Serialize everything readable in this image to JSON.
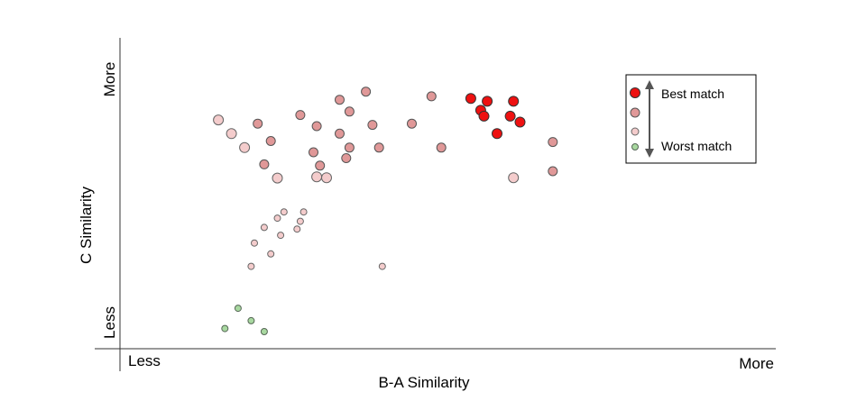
{
  "chart_data": {
    "type": "scatter",
    "title": "",
    "xlabel": "B-A Similarity",
    "ylabel": "C Similarity",
    "x_tick_labels": {
      "low": "Less",
      "high": "More"
    },
    "y_tick_labels": {
      "low": "Less",
      "high": "More"
    },
    "xlim": [
      0,
      100
    ],
    "ylim": [
      0,
      100
    ],
    "grid": false,
    "legend": {
      "position": "top-right",
      "top_label": "Best match",
      "bottom_label": "Worst match",
      "arrow": "double-headed vertical arrow between best and worst"
    },
    "tiers": [
      {
        "id": "best",
        "fill": "#ee1111",
        "stroke": "#333333"
      },
      {
        "id": "good",
        "fill": "#e09898",
        "stroke": "#555555"
      },
      {
        "id": "fair",
        "fill": "#f4cccc",
        "stroke": "#666666"
      },
      {
        "id": "worst",
        "fill": "#a8d8a0",
        "stroke": "#556655"
      }
    ],
    "series": [
      {
        "tier": "best",
        "points": [
          [
            53.5,
            80.5
          ],
          [
            55.0,
            76.7
          ],
          [
            56.0,
            79.6
          ],
          [
            55.5,
            74.8
          ],
          [
            60.0,
            79.6
          ],
          [
            57.5,
            69.2
          ],
          [
            59.5,
            74.8
          ],
          [
            61.0,
            72.9
          ]
        ]
      },
      {
        "tier": "good",
        "points": [
          [
            21.0,
            72.4
          ],
          [
            23.0,
            66.8
          ],
          [
            22.0,
            59.3
          ],
          [
            27.5,
            75.2
          ],
          [
            29.5,
            63.2
          ],
          [
            30.5,
            58.9
          ],
          [
            30.0,
            71.6
          ],
          [
            33.5,
            80.1
          ],
          [
            33.5,
            69.2
          ],
          [
            35.0,
            76.3
          ],
          [
            35.0,
            64.7
          ],
          [
            34.5,
            61.3
          ],
          [
            37.5,
            82.7
          ],
          [
            38.5,
            72.0
          ],
          [
            39.5,
            64.7
          ],
          [
            44.5,
            72.4
          ],
          [
            47.5,
            81.2
          ],
          [
            49.0,
            64.7
          ],
          [
            66.0,
            66.5
          ],
          [
            66.0,
            57.1
          ]
        ]
      },
      {
        "tier": "fair",
        "points": [
          [
            15.0,
            73.6
          ],
          [
            17.0,
            69.2
          ],
          [
            19.0,
            64.7
          ],
          [
            24.0,
            54.9
          ],
          [
            30.0,
            55.3
          ],
          [
            31.5,
            55.0
          ],
          [
            60.0,
            55.0
          ],
          [
            25.0,
            44.0
          ],
          [
            24.0,
            42.0
          ],
          [
            28.0,
            44.0
          ],
          [
            27.5,
            41.0
          ],
          [
            22.0,
            39.0
          ],
          [
            24.5,
            36.5
          ],
          [
            27.0,
            38.5
          ],
          [
            20.5,
            34.0
          ],
          [
            23.0,
            30.5
          ],
          [
            20.0,
            26.5
          ],
          [
            40.0,
            26.5
          ]
        ]
      },
      {
        "tier": "worst",
        "points": [
          [
            18.0,
            13.0
          ],
          [
            16.0,
            6.5
          ],
          [
            20.0,
            9.0
          ],
          [
            22.0,
            5.5
          ]
        ]
      }
    ]
  }
}
